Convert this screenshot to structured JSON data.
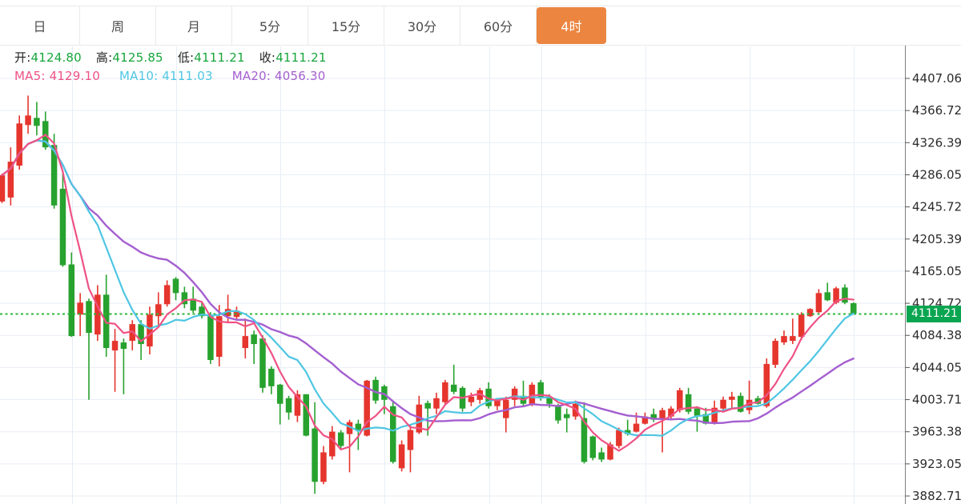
{
  "tabbar": {
    "active_bg": "#ec8540",
    "tabs": [
      {
        "label": "日",
        "active": false
      },
      {
        "label": "周",
        "active": false
      },
      {
        "label": "月",
        "active": false
      },
      {
        "label": "5分",
        "active": false
      },
      {
        "label": "15分",
        "active": false
      },
      {
        "label": "30分",
        "active": false
      },
      {
        "label": "60分",
        "active": false
      },
      {
        "label": "4时",
        "active": true
      }
    ]
  },
  "ohlc_readout": {
    "label_color": "#222222",
    "value_color": "#17a53c",
    "items": [
      {
        "label": "开:",
        "value": "4124.80"
      },
      {
        "label": "高:",
        "value": "4125.85"
      },
      {
        "label": "低:",
        "value": "4111.21"
      },
      {
        "label": "收:",
        "value": "4111.21"
      }
    ]
  },
  "ma_readout": {
    "items": [
      {
        "label": "MA5:",
        "value": "4129.10",
        "color": "#ef5285"
      },
      {
        "label": "MA10:",
        "value": "4111.03",
        "color": "#4fc6e3"
      },
      {
        "label": "MA20:",
        "value": "4056.30",
        "color": "#a45fd0"
      }
    ]
  },
  "chart_data": {
    "type": "candlestick",
    "interval": "4时",
    "grid": true,
    "legend_position": "none",
    "y_axis_side": "right",
    "y_axis_range_displayed": [
      3882.71,
      4407.06
    ],
    "y_ticks": [
      "4407.06",
      "4366.72",
      "4326.39",
      "4286.05",
      "4245.72",
      "4205.39",
      "4165.05",
      "4124.72",
      "4084.38",
      "4044.05",
      "4003.71",
      "3963.38",
      "3923.05",
      "3882.71"
    ],
    "current_price": "4111.21",
    "current_price_value": 4111.21,
    "colors": {
      "up": "#e5352d",
      "down": "#27a22e",
      "price_line": "#2eb637",
      "price_tag_bg": "#0aa550",
      "grid": "#e8eef6",
      "axis": "#7f7f7f",
      "tick_text": "#2b2b2b"
    },
    "axis": {
      "v1": 4407.06,
      "y1": 98,
      "v2": 3882.71,
      "y2": 620
    },
    "x_start": 2.5,
    "x_step": 10.85,
    "x_gridlines": [
      90,
      220,
      350,
      480,
      611,
      676,
      806,
      936,
      1066
    ],
    "moving_averages": [
      {
        "period": 20,
        "color": "#a45fd0",
        "width": 2.4,
        "latest": 4056.3
      },
      {
        "period": 10,
        "color": "#4fc6e3",
        "width": 2.2,
        "latest": 4111.03
      },
      {
        "period": 5,
        "color": "#ef5285",
        "width": 2.2,
        "latest": 4129.1
      }
    ],
    "candles": [
      [
        4252.5,
        4287.5,
        4250.5,
        4285.5
      ],
      [
        4257.5,
        4320.5,
        4247.5,
        4302.5
      ],
      [
        4297.5,
        4360.5,
        4292.5,
        4350.5
      ],
      [
        4348.5,
        4385.5,
        4337.5,
        4360.5
      ],
      [
        4357.5,
        4377.5,
        4335.5,
        4347.5
      ],
      [
        4353.5,
        4365.5,
        4317.5,
        4320.5
      ],
      [
        4323.5,
        4337.5,
        4243.5,
        4247.5
      ],
      [
        4268.5,
        4290.5,
        4170.5,
        4172.5
      ],
      [
        4173.5,
        4188.5,
        4082.5,
        4083.5
      ],
      [
        4110.5,
        4137.5,
        4083.5,
        4125.5
      ],
      [
        4127.5,
        4130.5,
        4003.5,
        4087.5
      ],
      [
        4085.5,
        4147.5,
        4077.5,
        4135.5
      ],
      [
        4135.5,
        4160.5,
        4057.5,
        4068.5
      ],
      [
        4065.5,
        4092.5,
        4013.5,
        4077.5
      ],
      [
        4075.5,
        4080.5,
        4010.5,
        4067.5
      ],
      [
        4077.5,
        4103.5,
        4065.5,
        4098.5
      ],
      [
        4098.5,
        4103.5,
        4053.5,
        4073.5
      ],
      [
        4070.5,
        4120.5,
        4060.5,
        4110.5
      ],
      [
        4108.5,
        4138.5,
        4095.5,
        4123.5
      ],
      [
        4123.5,
        4153.5,
        4120.5,
        4147.5
      ],
      [
        4155.5,
        4157.5,
        4128.5,
        4137.5
      ],
      [
        4138.5,
        4145.5,
        4118.5,
        4123.5
      ],
      [
        4130.5,
        4145.5,
        4112.5,
        4115.5
      ],
      [
        4120.5,
        4125.5,
        4105.5,
        4108.5
      ],
      [
        4108.5,
        4113.5,
        4048.5,
        4053.5
      ],
      [
        4057.5,
        4122.5,
        4045.5,
        4108.5
      ],
      [
        4108.5,
        4135.5,
        4100.5,
        4117.5
      ],
      [
        4107.5,
        4120.5,
        4103.5,
        4115.5
      ],
      [
        4068.5,
        4105.5,
        4055.5,
        4083.5
      ],
      [
        4085.5,
        4090.5,
        4048.5,
        4073.5
      ],
      [
        4080.5,
        4084.5,
        4012.5,
        4018.5
      ],
      [
        4042.5,
        4045.5,
        4010.5,
        4020.5
      ],
      [
        4022.5,
        4023.5,
        3972.5,
        3998.5
      ],
      [
        4005.5,
        4008.5,
        3978.5,
        3987.5
      ],
      [
        3983.5,
        4015.5,
        3975.5,
        4010.5
      ],
      [
        4010.5,
        4010.5,
        3957.5,
        3958.5
      ],
      [
        3967.5,
        4000.5,
        3885.5,
        3900.5
      ],
      [
        3900.5,
        3945.5,
        3897.5,
        3937.5
      ],
      [
        3932.5,
        3970.5,
        3928.5,
        3963.5
      ],
      [
        3962.5,
        3965.5,
        3940.5,
        3945.5
      ],
      [
        3960.5,
        3978.5,
        3912.5,
        3975.5
      ],
      [
        3973.5,
        3978.5,
        3940.5,
        3965.5
      ],
      [
        3958.5,
        4028.5,
        3957.5,
        4027.5
      ],
      [
        4028.5,
        4032.5,
        3998.5,
        4002.5
      ],
      [
        4020.5,
        4022.5,
        3985.5,
        4003.5
      ],
      [
        3995.5,
        4002.5,
        3923.5,
        3925.5
      ],
      [
        3917.5,
        3952.5,
        3913.5,
        3947.5
      ],
      [
        3940.5,
        3972.5,
        3912.5,
        3965.5
      ],
      [
        3962.5,
        4008.5,
        3960.5,
        3997.5
      ],
      [
        3999.5,
        4002.5,
        3958.5,
        3992.5
      ],
      [
        3992.5,
        4012.5,
        3985.5,
        4005.5
      ],
      [
        4000.5,
        4028.5,
        3997.5,
        4025.5
      ],
      [
        4022.5,
        4047.5,
        4010.5,
        4013.5
      ],
      [
        4018.5,
        4020.5,
        3988.5,
        3992.5
      ],
      [
        4000.5,
        4012.5,
        3995.5,
        4007.5
      ],
      [
        4003.5,
        4018.5,
        3998.5,
        4015.5
      ],
      [
        4017.5,
        4025.5,
        3992.5,
        3995.5
      ],
      [
        3995.5,
        4005.5,
        3990.5,
        4002.5
      ],
      [
        3980.5,
        4007.5,
        3962.5,
        4003.5
      ],
      [
        4003.5,
        4020.5,
        3995.5,
        4017.5
      ],
      [
        4008.5,
        4027.5,
        3995.5,
        3998.5
      ],
      [
        3998.5,
        4025.5,
        3995.5,
        4022.5
      ],
      [
        4025.5,
        4028.5,
        4002.5,
        4005.5
      ],
      [
        4007.5,
        4010.5,
        3993.5,
        3998.5
      ],
      [
        3995.5,
        3998.5,
        3973.5,
        3977.5
      ],
      [
        3985.5,
        3992.5,
        3962.5,
        3980.5
      ],
      [
        3982.5,
        4002.5,
        3978.5,
        3998.5
      ],
      [
        3980.5,
        4000.5,
        3923.5,
        3925.5
      ],
      [
        3957.5,
        3958.5,
        3927.5,
        3930.5
      ],
      [
        3937.5,
        3943.5,
        3925.5,
        3928.5
      ],
      [
        3928.5,
        3950.5,
        3927.5,
        3947.5
      ],
      [
        3945.5,
        3968.5,
        3942.5,
        3965.5
      ],
      [
        3965.5,
        3978.5,
        3958.5,
        3960.5
      ],
      [
        3963.5,
        3987.5,
        3962.5,
        3973.5
      ],
      [
        3973.5,
        3987.5,
        3972.5,
        3982.5
      ],
      [
        3985.5,
        3992.5,
        3975.5,
        3978.5
      ],
      [
        3978.5,
        3993.5,
        3937.5,
        3990.5
      ],
      [
        3982.5,
        3995.5,
        3978.5,
        3992.5
      ],
      [
        3990.5,
        4018.5,
        3987.5,
        4015.5
      ],
      [
        4010.5,
        4018.5,
        3985.5,
        3988.5
      ],
      [
        3992.5,
        3995.5,
        3963.5,
        3983.5
      ],
      [
        3985.5,
        3993.5,
        3972.5,
        3973.5
      ],
      [
        3973.5,
        4002.5,
        3972.5,
        3993.5
      ],
      [
        3992.5,
        4007.5,
        3990.5,
        4003.5
      ],
      [
        4003.5,
        4013.5,
        3993.5,
        4007.5
      ],
      [
        4008.5,
        4012.5,
        3987.5,
        3988.5
      ],
      [
        3990.5,
        4027.5,
        3985.5,
        4003.5
      ],
      [
        4005.5,
        4008.5,
        3997.5,
        3998.5
      ],
      [
        3995.5,
        4055.5,
        3993.5,
        4048.5
      ],
      [
        4047.5,
        4080.5,
        4043.5,
        4077.5
      ],
      [
        4075.5,
        4090.5,
        4072.5,
        4083.5
      ],
      [
        4077.5,
        4105.5,
        4073.5,
        4083.5
      ],
      [
        4082.5,
        4113.5,
        4078.5,
        4110.5
      ],
      [
        4108.5,
        4118.5,
        4107.5,
        4117.5
      ],
      [
        4113.5,
        4142.5,
        4112.5,
        4137.5
      ],
      [
        4138.5,
        4150.5,
        4127.5,
        4128.5
      ],
      [
        4125.5,
        4145.5,
        4123.5,
        4143.5
      ],
      [
        4144.5,
        4148.5,
        4123.5,
        4125.5
      ],
      [
        4124.8,
        4125.85,
        4111.21,
        4111.21
      ]
    ]
  }
}
